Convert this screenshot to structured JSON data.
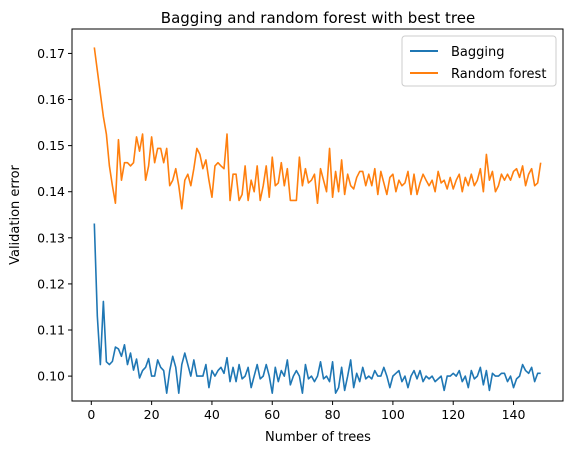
{
  "chart_data": {
    "type": "line",
    "title": "Bagging and random forest with best tree",
    "xlabel": "Number of trees",
    "ylabel": "Validation error",
    "xlim": [
      -6.4,
      156.4
    ],
    "ylim": [
      0.0946,
      0.1753
    ],
    "xticks": [
      0,
      20,
      40,
      60,
      80,
      100,
      120,
      140
    ],
    "yticks": [
      0.1,
      0.11,
      0.12,
      0.13,
      0.14,
      0.15,
      0.16,
      0.17
    ],
    "ytick_labels": [
      "0.10",
      "0.11",
      "0.12",
      "0.13",
      "0.14",
      "0.15",
      "0.16",
      "0.17"
    ],
    "grid": false,
    "legend_position": "top-right",
    "series": [
      {
        "name": "Bagging",
        "color": "#1f77b4",
        "x_start": 1,
        "values": [
          0.1331,
          0.113,
          0.1025,
          0.1162,
          0.1031,
          0.1025,
          0.1032,
          0.1063,
          0.1059,
          0.1043,
          0.1068,
          0.1025,
          0.105,
          0.1013,
          0.1037,
          0.0996,
          0.1012,
          0.1019,
          0.1038,
          0.1,
          0.1,
          0.1035,
          0.1019,
          0.1012,
          0.0963,
          0.1012,
          0.1043,
          0.1019,
          0.0963,
          0.1025,
          0.105,
          0.1025,
          0.1,
          0.1035,
          0.1,
          0.1,
          0.1,
          0.1025,
          0.0975,
          0.1012,
          0.1,
          0.1012,
          0.1019,
          0.1006,
          0.104,
          0.0988,
          0.1019,
          0.0988,
          0.1025,
          0.0994,
          0.1,
          0.1019,
          0.0975,
          0.1,
          0.1025,
          0.0994,
          0.1,
          0.1025,
          0.1,
          0.0963,
          0.1019,
          0.0988,
          0.1012,
          0.1,
          0.1035,
          0.0981,
          0.1,
          0.1012,
          0.1,
          0.0963,
          0.1025,
          0.0994,
          0.1,
          0.0988,
          0.1,
          0.1031,
          0.0994,
          0.1,
          0.0988,
          0.1031,
          0.0963,
          0.0975,
          0.1019,
          0.0969,
          0.1,
          0.1035,
          0.0975,
          0.1006,
          0.0988,
          0.1019,
          0.0994,
          0.1,
          0.0994,
          0.1012,
          0.1,
          0.1,
          0.1019,
          0.1,
          0.0975,
          0.1,
          0.1006,
          0.1012,
          0.0988,
          0.1,
          0.0975,
          0.1,
          0.1012,
          0.0994,
          0.1012,
          0.0988,
          0.1,
          0.0994,
          0.1,
          0.0988,
          0.0994,
          0.1,
          0.0969,
          0.1,
          0.1,
          0.1006,
          0.1,
          0.1012,
          0.0988,
          0.1,
          0.0975,
          0.1012,
          0.0994,
          0.1,
          0.1019,
          0.0981,
          0.1012,
          0.0969,
          0.1006,
          0.1,
          0.1,
          0.1006,
          0.1006,
          0.0988,
          0.1,
          0.0975,
          0.0994,
          0.1,
          0.1025,
          0.1012,
          0.1006,
          0.1019,
          0.0988,
          0.1006,
          0.1006
        ]
      },
      {
        "name": "Random forest",
        "color": "#ff7f0e",
        "x_start": 1,
        "values": [
          0.1713,
          0.1663,
          0.1613,
          0.1563,
          0.1525,
          0.1456,
          0.1413,
          0.1375,
          0.1513,
          0.1425,
          0.1463,
          0.1463,
          0.1456,
          0.1463,
          0.1519,
          0.1488,
          0.1525,
          0.1425,
          0.1456,
          0.1519,
          0.1463,
          0.1494,
          0.1494,
          0.1463,
          0.1494,
          0.1413,
          0.1425,
          0.145,
          0.1413,
          0.1363,
          0.1425,
          0.1438,
          0.1413,
          0.145,
          0.1494,
          0.1481,
          0.145,
          0.1469,
          0.1425,
          0.1388,
          0.1456,
          0.1463,
          0.1456,
          0.145,
          0.1525,
          0.1381,
          0.1438,
          0.1438,
          0.1381,
          0.1394,
          0.1456,
          0.1381,
          0.1425,
          0.14,
          0.1456,
          0.1381,
          0.1413,
          0.1456,
          0.1388,
          0.1475,
          0.1413,
          0.1419,
          0.1463,
          0.1413,
          0.145,
          0.1381,
          0.1381,
          0.1381,
          0.1475,
          0.1413,
          0.145,
          0.1419,
          0.1425,
          0.1438,
          0.1375,
          0.145,
          0.1425,
          0.14,
          0.1494,
          0.1388,
          0.1444,
          0.14,
          0.1469,
          0.1394,
          0.1438,
          0.1413,
          0.1406,
          0.1431,
          0.1444,
          0.1444,
          0.1413,
          0.1438,
          0.1413,
          0.145,
          0.1394,
          0.1444,
          0.1419,
          0.1394,
          0.1431,
          0.1438,
          0.14,
          0.1425,
          0.1413,
          0.1419,
          0.1444,
          0.1394,
          0.1438,
          0.1394,
          0.1419,
          0.1438,
          0.1425,
          0.1413,
          0.1425,
          0.14,
          0.1444,
          0.1419,
          0.1425,
          0.1406,
          0.1431,
          0.1406,
          0.1425,
          0.1438,
          0.14,
          0.1431,
          0.1413,
          0.1438,
          0.1413,
          0.1425,
          0.145,
          0.14,
          0.1481,
          0.1425,
          0.1444,
          0.14,
          0.1413,
          0.1438,
          0.1425,
          0.1438,
          0.1425,
          0.1444,
          0.145,
          0.1431,
          0.1456,
          0.1413,
          0.1438,
          0.145,
          0.1413,
          0.1419,
          0.1463
        ]
      }
    ]
  }
}
